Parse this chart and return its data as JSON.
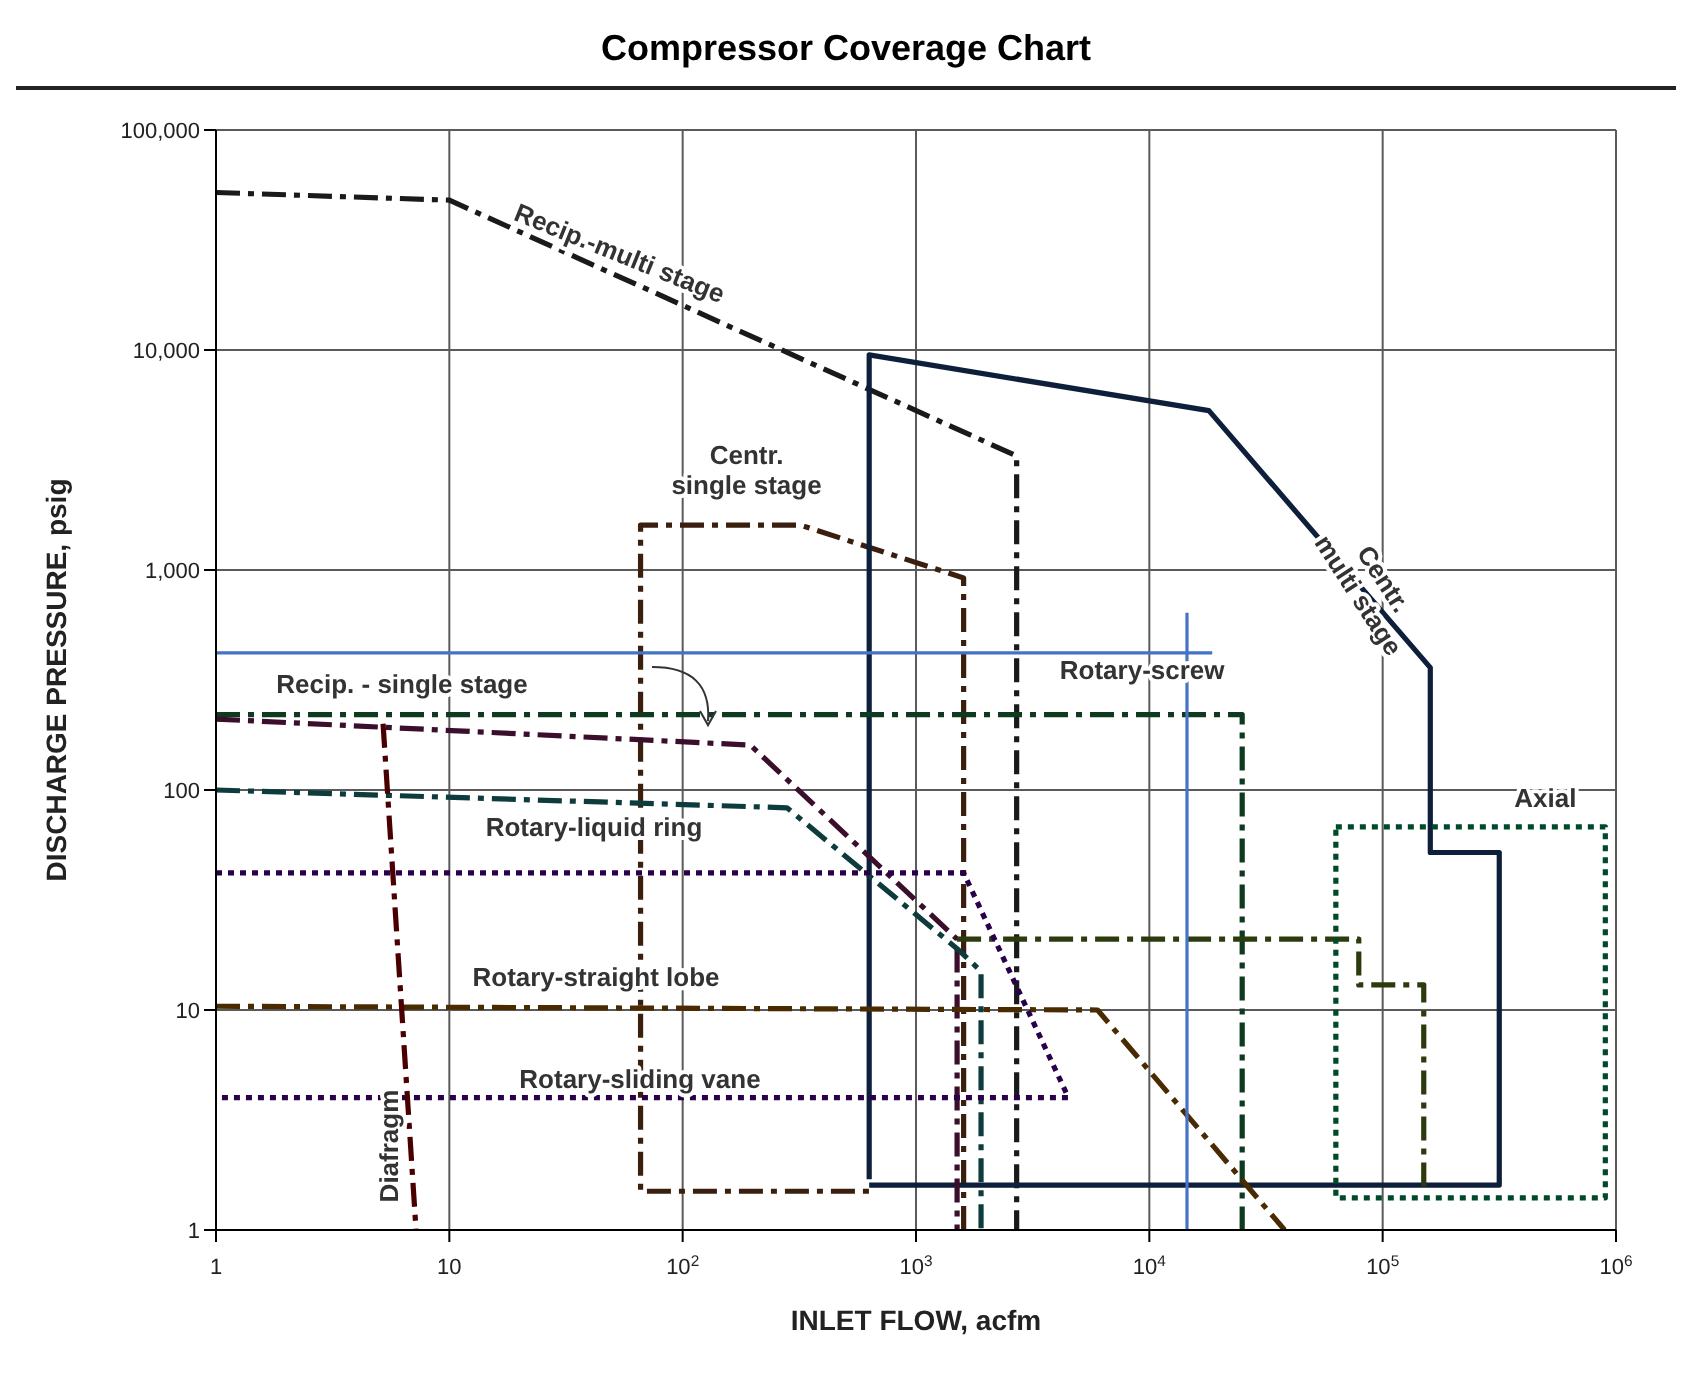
{
  "chart_data": {
    "type": "line",
    "title": "Compressor Coverage Chart",
    "xlabel": "INLET FLOW, acfm",
    "ylabel": "DISCHARGE PRESSURE, psig",
    "log": "xy",
    "grid": true,
    "xlim": [
      1,
      1000000
    ],
    "xticks": [
      1,
      10,
      {
        "value": 100,
        "label": "10$^{2}$"
      },
      {
        "value": 1000,
        "label": "10$^{3}$"
      },
      {
        "value": 10000,
        "label": "10$^{4}$"
      },
      {
        "value": 100000,
        "label": "10$^{5}$"
      },
      {
        "value": 1000000,
        "label": "10$^{6}$"
      }
    ],
    "ylim": [
      1,
      100000
    ],
    "yticks": [
      1,
      10,
      100,
      {
        "value": 1000,
        "label": "1,000"
      },
      {
        "value": 10000,
        "label": "10,000"
      },
      {
        "value": 100000,
        "label": "100,000"
      }
    ],
    "series": [
      {
        "name": "Recip.-multi stage",
        "color": "#1a1a1a",
        "line_style": "dashed",
        "x": [
          1,
          10,
          2700,
          2700
        ],
        "values": [
          52000,
          48000,
          3300,
          1
        ]
      },
      {
        "name": "Centr.\nsingle stage",
        "color": "#3b1f0e",
        "line_style": "dashed",
        "x": [
          1600,
          1600,
          320,
          66,
          66,
          630
        ],
        "values": [
          1,
          920,
          1600,
          1600,
          1.5,
          1.5
        ]
      },
      {
        "name": "Centr.\nmulti stage",
        "color": "#0e1f3b",
        "line_style": "solid",
        "x": [
          630,
          630,
          18000,
          160000,
          160000,
          316000,
          316000,
          630
        ],
        "values": [
          1.7,
          9500,
          5300,
          360,
          52,
          52,
          1.6,
          1.6
        ]
      },
      {
        "name": "Rotary-screw",
        "color": "#0e3b1f",
        "line_style": "dashed",
        "x": [
          1,
          25000,
          25000
        ],
        "values": [
          220,
          220,
          1
        ]
      },
      {
        "name": "Recip. - single stage",
        "color": "#3b0e2c",
        "line_style": "dashed",
        "x": [
          1,
          195,
          1500,
          1500
        ],
        "values": [
          210,
          160,
          21,
          1
        ]
      },
      {
        "color": "#2c3b0e",
        "line_style": "dashed",
        "x": [
          1500,
          79000,
          79000,
          150000,
          150000
        ],
        "values": [
          21,
          21,
          13,
          13,
          1.5
        ]
      },
      {
        "name": "Rotary-liquid ring",
        "color": "#0e3b3b",
        "line_style": "dashed",
        "x": [
          1,
          280,
          1500,
          1900,
          1900
        ],
        "values": [
          100,
          83,
          19,
          15,
          1
        ]
      },
      {
        "name": "Rotary-straight lobe",
        "color": "#4a2a00",
        "line_style": "dashed",
        "x": [
          1,
          6000,
          38000
        ],
        "values": [
          10.4,
          10,
          1
        ]
      },
      {
        "name": "Rotary-sliding vane",
        "color": "#2a004a",
        "line_style": "dotted",
        "x": [
          1,
          1600,
          4500,
          1
        ],
        "values": [
          42,
          42,
          4,
          4
        ]
      },
      {
        "name": "Axial",
        "color": "#004a2a",
        "line_style": "dotted",
        "x": [
          63000,
          900000,
          900000,
          63000,
          63000
        ],
        "values": [
          68,
          68,
          1.4,
          1.4,
          66
        ]
      },
      {
        "name": "Diafragm",
        "color": "#4a0000",
        "line_style": "dashed",
        "x": [
          5.2,
          7.2
        ],
        "values": [
          200,
          1
        ]
      },
      {
        "color": "#4472c4",
        "line_style": "solid",
        "x": [
          1,
          18600
        ],
        "values": [
          420,
          420
        ]
      },
      {
        "color": "#4673c5",
        "line_style": "solid",
        "x": [
          14500,
          14500
        ],
        "values": [
          640,
          1
        ]
      }
    ]
  }
}
